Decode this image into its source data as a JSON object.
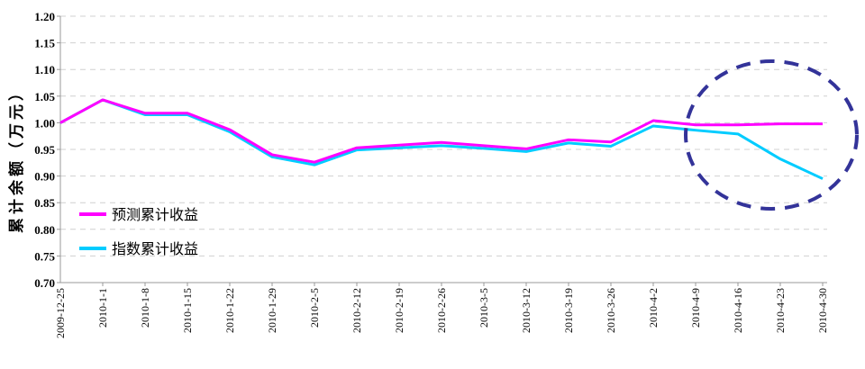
{
  "chart_data": {
    "type": "line",
    "title": "",
    "xlabel": "",
    "ylabel": "累计余额（万元）",
    "ylim": [
      0.7,
      1.2
    ],
    "yticks": [
      "0.70",
      "0.75",
      "0.80",
      "0.85",
      "0.90",
      "0.95",
      "1.00",
      "1.05",
      "1.10",
      "1.15",
      "1.20"
    ],
    "grid": "horizontal dashed",
    "legend_position": "bottom-left",
    "categories": [
      "2009-12-25",
      "2010-1-1",
      "2010-1-8",
      "2010-1-15",
      "2010-1-22",
      "2010-1-29",
      "2010-2-5",
      "2010-2-12",
      "2010-2-19",
      "2010-2-26",
      "2010-3-5",
      "2010-3-12",
      "2010-3-19",
      "2010-3-26",
      "2010-4-2",
      "2010-4-9",
      "2010-4-16",
      "2010-4-23",
      "2010-4-30"
    ],
    "series": [
      {
        "name": "预测累计收益",
        "color": "#ff00ff",
        "values": [
          1.0,
          1.043,
          1.018,
          1.018,
          0.987,
          0.94,
          0.926,
          0.953,
          0.958,
          0.963,
          0.957,
          0.951,
          0.968,
          0.964,
          1.004,
          0.996,
          0.996,
          0.998,
          0.998
        ]
      },
      {
        "name": "指数累计收益",
        "color": "#00ccff",
        "values": [
          1.0,
          1.043,
          1.015,
          1.015,
          0.983,
          0.936,
          0.921,
          0.949,
          0.953,
          0.957,
          0.952,
          0.946,
          0.962,
          0.956,
          0.994,
          0.986,
          0.979,
          0.932,
          0.895
        ]
      }
    ],
    "annotation": {
      "shape": "dashed-ellipse",
      "color": "#333399",
      "covers": [
        "2010-4-9",
        "2010-4-30"
      ]
    }
  }
}
